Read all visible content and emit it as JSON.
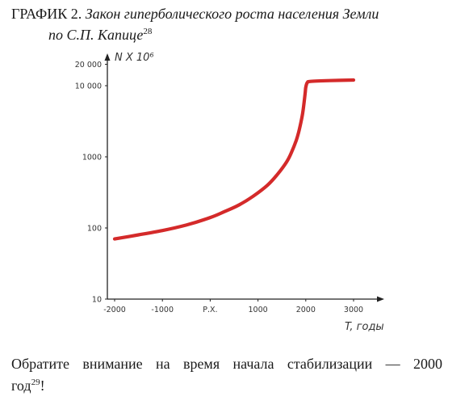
{
  "caption": {
    "prefix": "ГРАФИК 2.",
    "title_line1": "Закон гиперболического роста населения Земли",
    "title_line2": "по С.П. Капице",
    "footnote": "28"
  },
  "paragraph": {
    "line1": "Обратите внимание на время начала стабилизации — 2000",
    "line2": "год",
    "footnote": "29",
    "end": "!"
  },
  "chart_data": {
    "type": "line",
    "title": "Закон гиперболического роста населения Земли",
    "ylabel": "N X 10⁶",
    "xlabel": "T, годы",
    "yscale": "log",
    "ylim": [
      10,
      20000
    ],
    "xlim": [
      -2000,
      3000
    ],
    "grid": false,
    "x_ticks": [
      {
        "value": -2000,
        "label": "-2000"
      },
      {
        "value": -1000,
        "label": "-1000"
      },
      {
        "value": 0,
        "label": "Р.Х."
      },
      {
        "value": 1000,
        "label": "1000"
      },
      {
        "value": 2000,
        "label": "2000"
      },
      {
        "value": 3000,
        "label": "3000"
      }
    ],
    "y_ticks": [
      {
        "value": 10,
        "label": "10"
      },
      {
        "value": 100,
        "label": "100"
      },
      {
        "value": 1000,
        "label": "1000"
      },
      {
        "value": 10000,
        "label": "10 000"
      },
      {
        "value": 20000,
        "label": "20 000"
      }
    ],
    "series": [
      {
        "color": "#d42a2a",
        "x": [
          -2000,
          -1500,
          -1000,
          -500,
          0,
          300,
          600,
          900,
          1200,
          1400,
          1600,
          1700,
          1800,
          1850,
          1900,
          1940,
          1970,
          1990,
          2000,
          2030,
          2100,
          2500,
          3000
        ],
        "y": [
          70,
          80,
          92,
          110,
          140,
          170,
          210,
          280,
          400,
          560,
          850,
          1150,
          1700,
          2200,
          3100,
          4300,
          6200,
          8200,
          9500,
          11000,
          11500,
          11800,
          12000
        ]
      }
    ]
  }
}
